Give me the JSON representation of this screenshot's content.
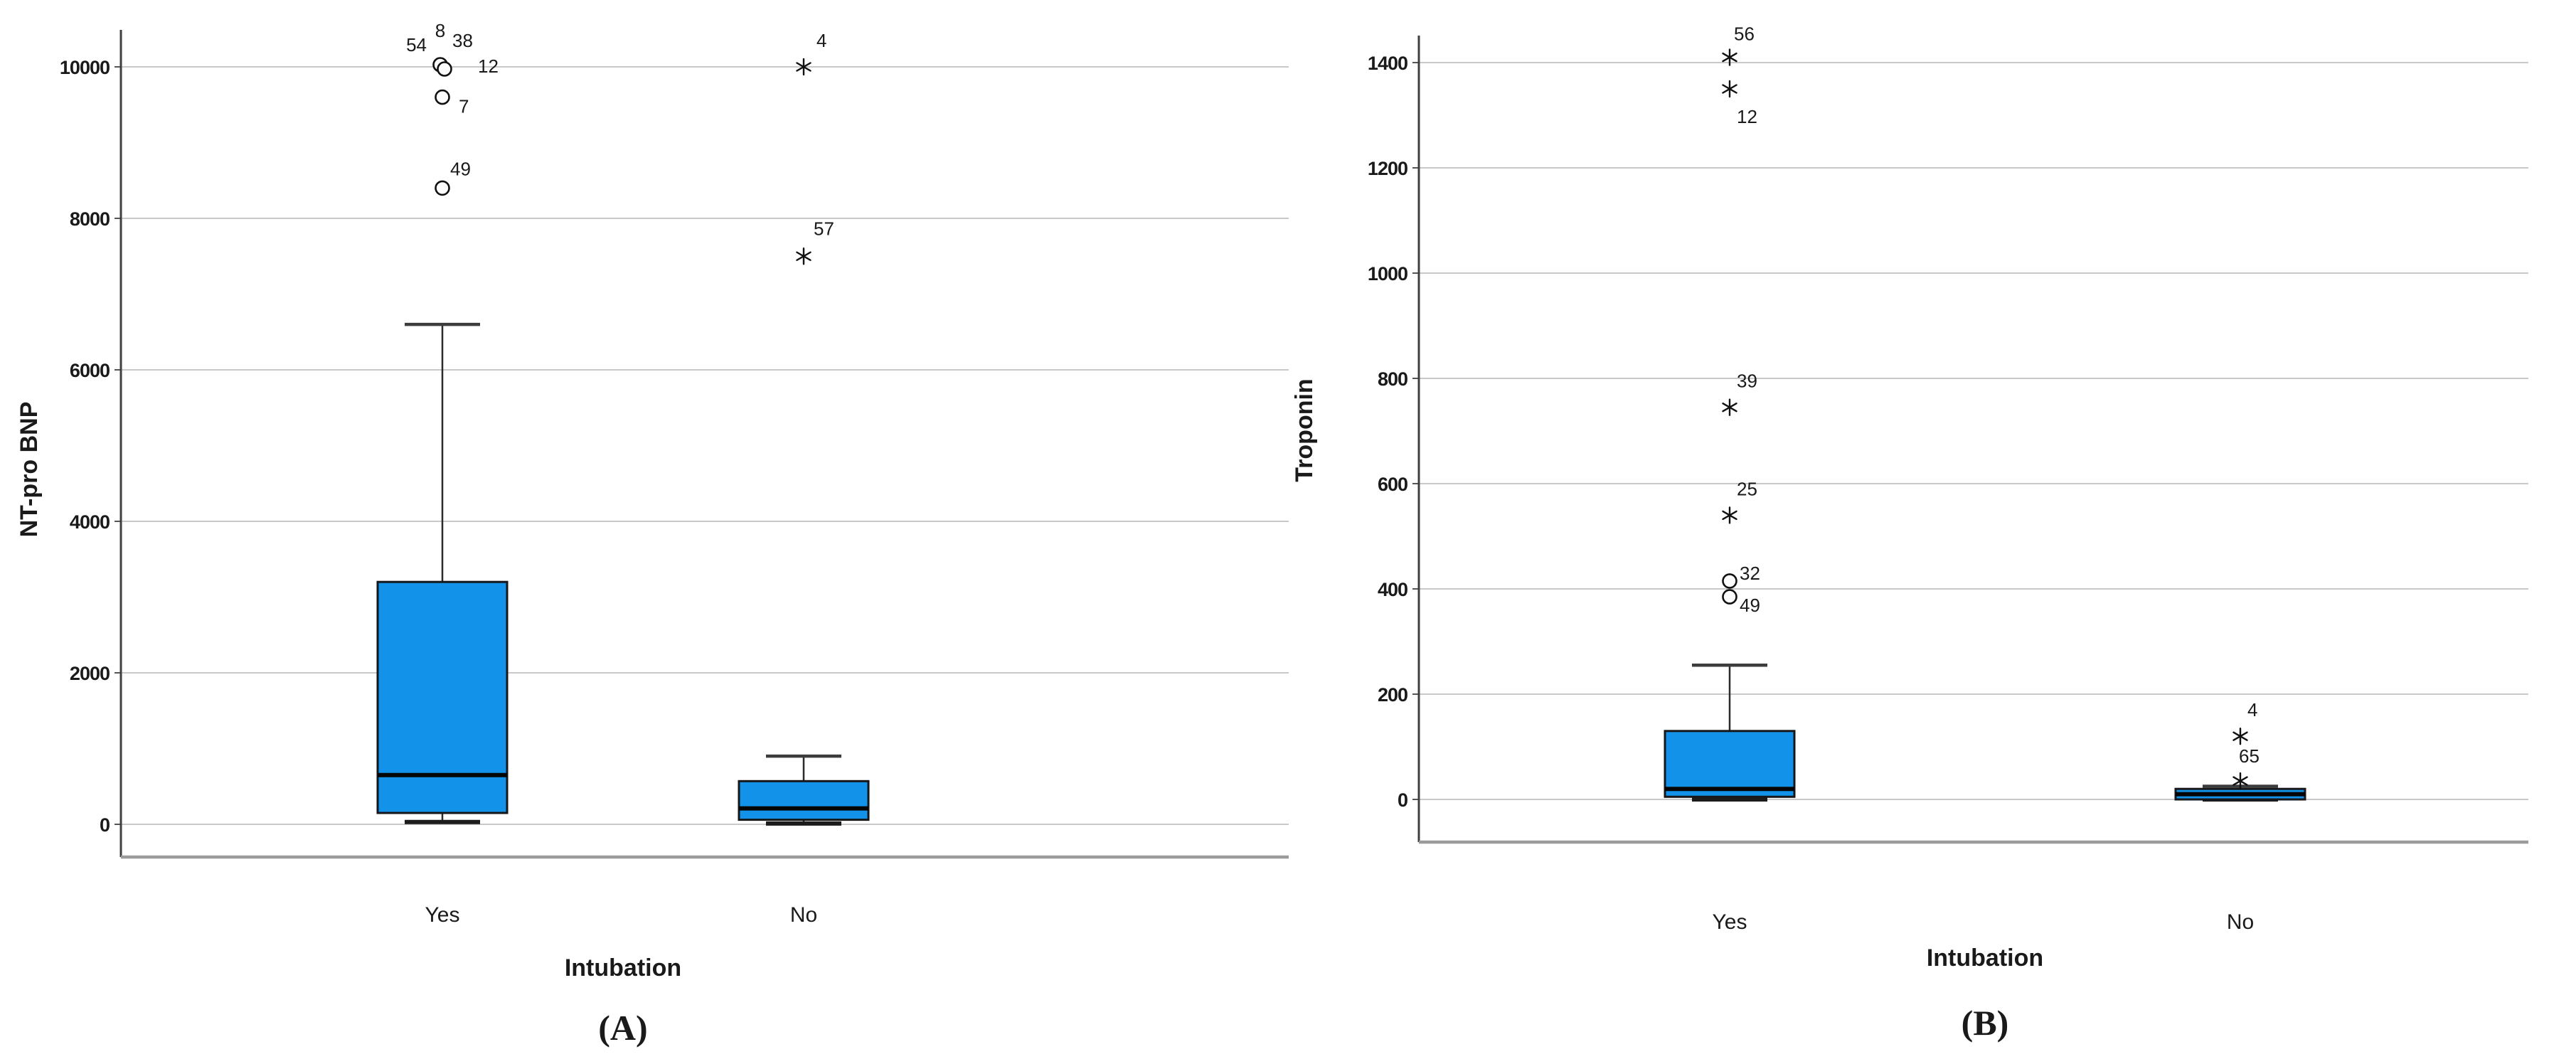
{
  "figure": {
    "background": "#ffffff",
    "marker_legend": {
      "circle": "outlier",
      "star": "extreme-outlier"
    }
  },
  "chart_data": [
    {
      "type": "boxplot",
      "caption": "(A)",
      "ylabel": "NT-pro BNP",
      "xlabel": "Intubation",
      "categories": [
        "Yes",
        "No"
      ],
      "yticks": [
        0,
        2000,
        4000,
        6000,
        8000,
        10000
      ],
      "ylim": [
        -430,
        10490
      ],
      "grid": "horizontal",
      "legend": "none",
      "box_color": "#1292E8",
      "groups": [
        {
          "category": "Yes",
          "whisker_low": 30,
          "q1": 150,
          "median": 650,
          "q3": 3200,
          "whisker_high": 6600,
          "outliers": [
            {
              "value": 10000,
              "marker": "circle",
              "double": true,
              "cases": [
                {
                  "text": "54",
                  "dx": -22,
                  "dy": -22,
                  "anchor": "end"
                },
                {
                  "text": "8",
                  "dx": -3,
                  "dy": -42,
                  "anchor": "middle"
                },
                {
                  "text": "38",
                  "dx": 14,
                  "dy": -28,
                  "anchor": "start"
                },
                {
                  "text": "12",
                  "dx": 50,
                  "dy": 8,
                  "anchor": "start"
                }
              ]
            },
            {
              "value": 9600,
              "marker": "circle",
              "cases": [
                {
                  "text": "7",
                  "dx": 23,
                  "dy": 22,
                  "anchor": "start"
                }
              ]
            },
            {
              "value": 8400,
              "marker": "circle",
              "cases": [
                {
                  "text": "49",
                  "dx": 11,
                  "dy": -18,
                  "anchor": "start"
                }
              ]
            }
          ]
        },
        {
          "category": "No",
          "whisker_low": 10,
          "q1": 60,
          "median": 210,
          "q3": 570,
          "whisker_high": 900,
          "outliers": [
            {
              "value": 10000,
              "marker": "star",
              "cases": [
                {
                  "text": "4",
                  "dx": 18,
                  "dy": -28,
                  "anchor": "start"
                }
              ]
            },
            {
              "value": 7500,
              "marker": "star",
              "cases": [
                {
                  "text": "57",
                  "dx": 14,
                  "dy": -30,
                  "anchor": "start"
                }
              ]
            }
          ]
        }
      ]
    },
    {
      "type": "boxplot",
      "caption": "(B)",
      "ylabel": "Troponin",
      "xlabel": "Intubation",
      "categories": [
        "Yes",
        "No"
      ],
      "yticks": [
        0,
        200,
        400,
        600,
        800,
        1000,
        1200,
        1400
      ],
      "ylim": [
        -81,
        1451
      ],
      "grid": "horizontal",
      "legend": "none",
      "box_color": "#1292E8",
      "groups": [
        {
          "category": "Yes",
          "whisker_low": 0,
          "q1": 5,
          "median": 20,
          "q3": 130,
          "whisker_high": 255,
          "outliers": [
            {
              "value": 1410,
              "marker": "star",
              "cases": [
                {
                  "text": "56",
                  "dx": 6,
                  "dy": -24,
                  "anchor": "start"
                }
              ]
            },
            {
              "value": 1350,
              "marker": "star",
              "cases": [
                {
                  "text": "12",
                  "dx": 10,
                  "dy": 48,
                  "anchor": "start"
                }
              ]
            },
            {
              "value": 745,
              "marker": "star",
              "cases": [
                {
                  "text": "39",
                  "dx": 10,
                  "dy": -28,
                  "anchor": "start"
                }
              ]
            },
            {
              "value": 540,
              "marker": "star",
              "cases": [
                {
                  "text": "25",
                  "dx": 10,
                  "dy": -28,
                  "anchor": "start"
                }
              ]
            },
            {
              "value": 415,
              "marker": "circle",
              "cases": [
                {
                  "text": "32",
                  "dx": 14,
                  "dy": -2,
                  "anchor": "start"
                }
              ]
            },
            {
              "value": 385,
              "marker": "circle",
              "cases": [
                {
                  "text": "49",
                  "dx": 14,
                  "dy": 21,
                  "anchor": "start"
                }
              ]
            }
          ]
        },
        {
          "category": "No",
          "whisker_low": 0,
          "q1": 0,
          "median": 10,
          "q3": 20,
          "whisker_high": 25,
          "outliers": [
            {
              "value": 120,
              "marker": "star",
              "cases": [
                {
                  "text": "4",
                  "dx": 10,
                  "dy": -28,
                  "anchor": "start"
                }
              ]
            },
            {
              "value": 35,
              "marker": "star",
              "cases": [
                {
                  "text": "65",
                  "dx": -2,
                  "dy": -26,
                  "anchor": "start"
                }
              ]
            }
          ]
        }
      ]
    }
  ]
}
